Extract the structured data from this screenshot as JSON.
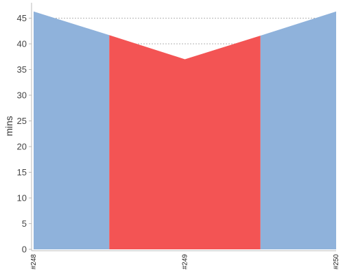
{
  "chart_data": {
    "type": "area",
    "ylabel": "mins",
    "xlabel": "",
    "x": [
      0,
      0.5,
      1,
      1.5,
      2
    ],
    "y": [
      46.3,
      41.7,
      37.0,
      41.6,
      46.3
    ],
    "x_tick_labels": [
      "#248",
      "#249",
      "#250"
    ],
    "x_tick_positions": [
      0,
      1,
      2
    ],
    "ylim": [
      0,
      48
    ],
    "yticks": [
      0,
      5,
      10,
      15,
      20,
      25,
      30,
      35,
      40,
      45
    ],
    "regions": [
      {
        "from": 0,
        "to": 0.5,
        "color": "#8fb2db"
      },
      {
        "from": 0.5,
        "to": 1.5,
        "color": "#f35454"
      },
      {
        "from": 1.5,
        "to": 2,
        "color": "#8fb2db"
      }
    ],
    "grid": true,
    "legend": "none"
  }
}
